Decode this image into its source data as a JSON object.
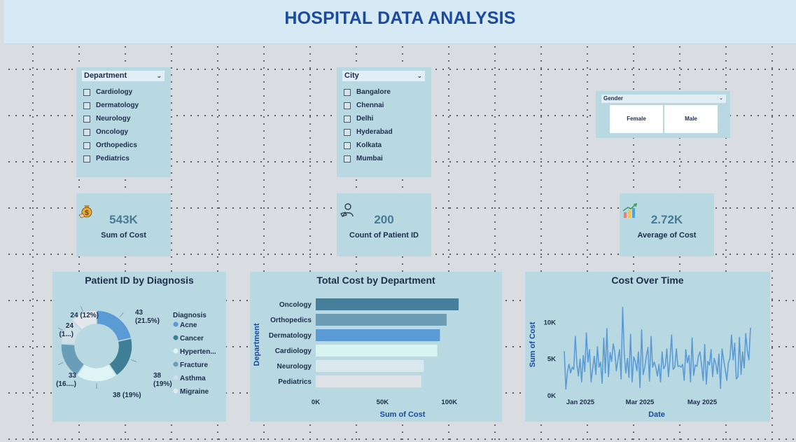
{
  "header": {
    "title": "HOSPITAL DATA ANALYSIS"
  },
  "slicers": {
    "department": {
      "label": "Department",
      "items": [
        "Cardiology",
        "Dermatology",
        "Neurology",
        "Oncology",
        "Orthopedics",
        "Pediatrics"
      ]
    },
    "city": {
      "label": "City",
      "items": [
        "Bangalore",
        "Chennai",
        "Delhi",
        "Hyderabad",
        "Kolkata",
        "Mumbai"
      ]
    },
    "gender": {
      "label": "Gender",
      "options": [
        "Female",
        "Male"
      ]
    }
  },
  "kpis": {
    "sum_cost": {
      "value": "543K",
      "label": "Sum of Cost",
      "icon": "money-bag-icon"
    },
    "count_patient": {
      "value": "200",
      "label": "Count of Patient ID",
      "icon": "patient-icon"
    },
    "avg_cost": {
      "value": "2.72K",
      "label": "Average of Cost",
      "icon": "growth-chart-icon"
    }
  },
  "chart_data": [
    {
      "type": "pie",
      "title": "Patient ID by Diagnosis",
      "legend_title": "Diagnosis",
      "legend_position": "right",
      "categories": [
        "Acne",
        "Cancer",
        "Hyperten...",
        "Fracture",
        "Asthma",
        "Migraine"
      ],
      "values": [
        43,
        38,
        38,
        33,
        24,
        24
      ],
      "data_labels": [
        "43 (21.5%)",
        "38 (19%)",
        "38 (19%)",
        "33 (16....)",
        "24 (1...)",
        "24 (12%)"
      ],
      "colors": [
        "#5b9bd5",
        "#3e7f96",
        "#dff5f5",
        "#6a9db8",
        "#cfe0e8",
        "#e4e8ec"
      ]
    },
    {
      "type": "bar",
      "orientation": "horizontal",
      "title": "Total Cost by Department",
      "categories": [
        "Oncology",
        "Orthopedics",
        "Dermatology",
        "Cardiology",
        "Neurology",
        "Pediatrics"
      ],
      "values": [
        107000,
        98000,
        93000,
        91000,
        81000,
        79000
      ],
      "colors": [
        "#457f9a",
        "#6d9db5",
        "#5b9bd5",
        "#d7f4f1",
        "#d9e7ee",
        "#dfe3e8"
      ],
      "xlabel": "Sum of Cost",
      "ylabel": "Department",
      "xlim": [
        0,
        130000
      ],
      "xticks": [
        "0K",
        "50K",
        "100K"
      ]
    },
    {
      "type": "line",
      "title": "Cost Over Time",
      "xlabel": "Date",
      "ylabel": "Sum of Cost",
      "ylim": [
        0,
        13000
      ],
      "yticks": [
        "0K",
        "5K",
        "10K"
      ],
      "xticks": [
        "Jan 2025",
        "Mar 2025",
        "May 2025"
      ],
      "x_range": [
        "2024-12-01",
        "2025-06-30"
      ],
      "color": "#5b9bd5",
      "values": [
        6000,
        800,
        3200,
        4200,
        3000,
        3800,
        3500,
        8000,
        4200,
        2600,
        4900,
        1800,
        5400,
        3200,
        8500,
        4500,
        6200,
        1800,
        3600,
        5300,
        2800,
        6600,
        3800,
        4500,
        1600,
        7800,
        3000,
        9100,
        2500,
        5800,
        4600,
        7000,
        5900,
        3300,
        4800,
        6200,
        2200,
        12000,
        5600,
        3000,
        5000,
        2400,
        8300,
        1800,
        5200,
        4600,
        3300,
        5900,
        1000,
        8900,
        2800,
        3800,
        5300,
        6500,
        1900,
        8000,
        3800,
        4500,
        3800,
        2600,
        4200,
        1800,
        5900,
        3600,
        4000,
        6300,
        2500,
        4800,
        8200,
        3500,
        3800,
        6300,
        3900,
        4000,
        3800,
        4200,
        2000,
        6200,
        4400,
        5400,
        1800,
        7800,
        2700,
        4100,
        3900,
        5300,
        5900,
        4100,
        2000,
        6900,
        1500,
        4600,
        4100,
        6200,
        2500,
        5000,
        4300,
        2900,
        5600,
        900,
        6300,
        4800,
        3500,
        2000,
        4400,
        5000,
        8200,
        4800,
        7100,
        2200,
        2500,
        7900,
        2800,
        5900,
        3700,
        8400,
        6000,
        4800,
        9200
      ]
    }
  ]
}
